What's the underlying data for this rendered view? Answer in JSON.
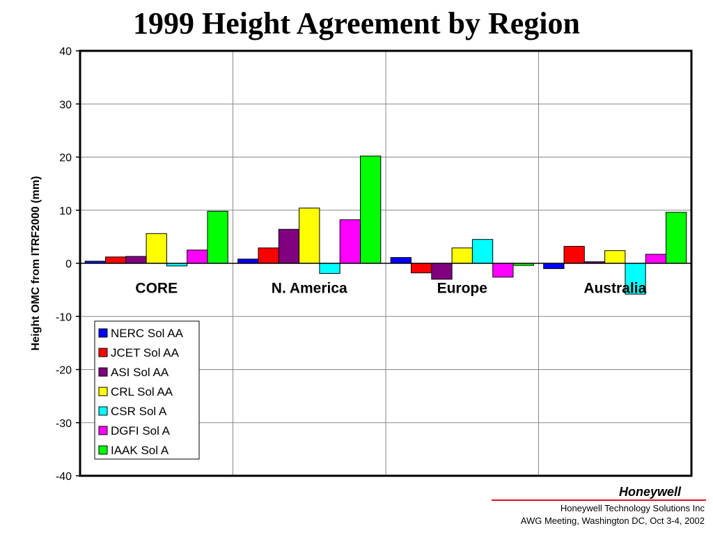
{
  "title": "1999 Height Agreement by Region",
  "footer": {
    "brand": "Honeywell",
    "company": "Honeywell Technology Solutions Inc",
    "event": "AWG Meeting, Washington DC, Oct 3-4, 2002"
  },
  "chart_data": {
    "type": "bar",
    "title": "1999 Height Agreement by Region",
    "ylabel": "Height OMC from ITRF2000 (mm)",
    "xlabel": "",
    "ylim": [
      -40,
      40
    ],
    "yticks": [
      40,
      30,
      20,
      10,
      0,
      -10,
      -20,
      -30,
      -40
    ],
    "categories": [
      "CORE",
      "N. America",
      "Europe",
      "Australia"
    ],
    "grid": true,
    "legend_position": "left",
    "series": [
      {
        "name": "NERC Sol AA",
        "color": "#0000ff",
        "values": [
          0.4,
          0.8,
          1.1,
          -1.0
        ]
      },
      {
        "name": "JCET Sol AA",
        "color": "#ff0000",
        "values": [
          1.2,
          2.9,
          -1.8,
          3.2
        ]
      },
      {
        "name": "ASI Sol AA",
        "color": "#800080",
        "values": [
          1.3,
          6.4,
          -3.0,
          0.3
        ]
      },
      {
        "name": "CRL Sol AA",
        "color": "#ffff00",
        "values": [
          5.6,
          10.4,
          2.9,
          2.4
        ]
      },
      {
        "name": "CSR Sol A",
        "color": "#00ffff",
        "values": [
          -0.5,
          -1.9,
          4.5,
          -5.8
        ]
      },
      {
        "name": "DGFI Sol A",
        "color": "#ff00ff",
        "values": [
          2.5,
          8.2,
          -2.6,
          1.7
        ]
      },
      {
        "name": "IAAK Sol A",
        "color": "#00ff00",
        "values": [
          9.8,
          20.2,
          -0.4,
          9.6
        ]
      }
    ]
  }
}
